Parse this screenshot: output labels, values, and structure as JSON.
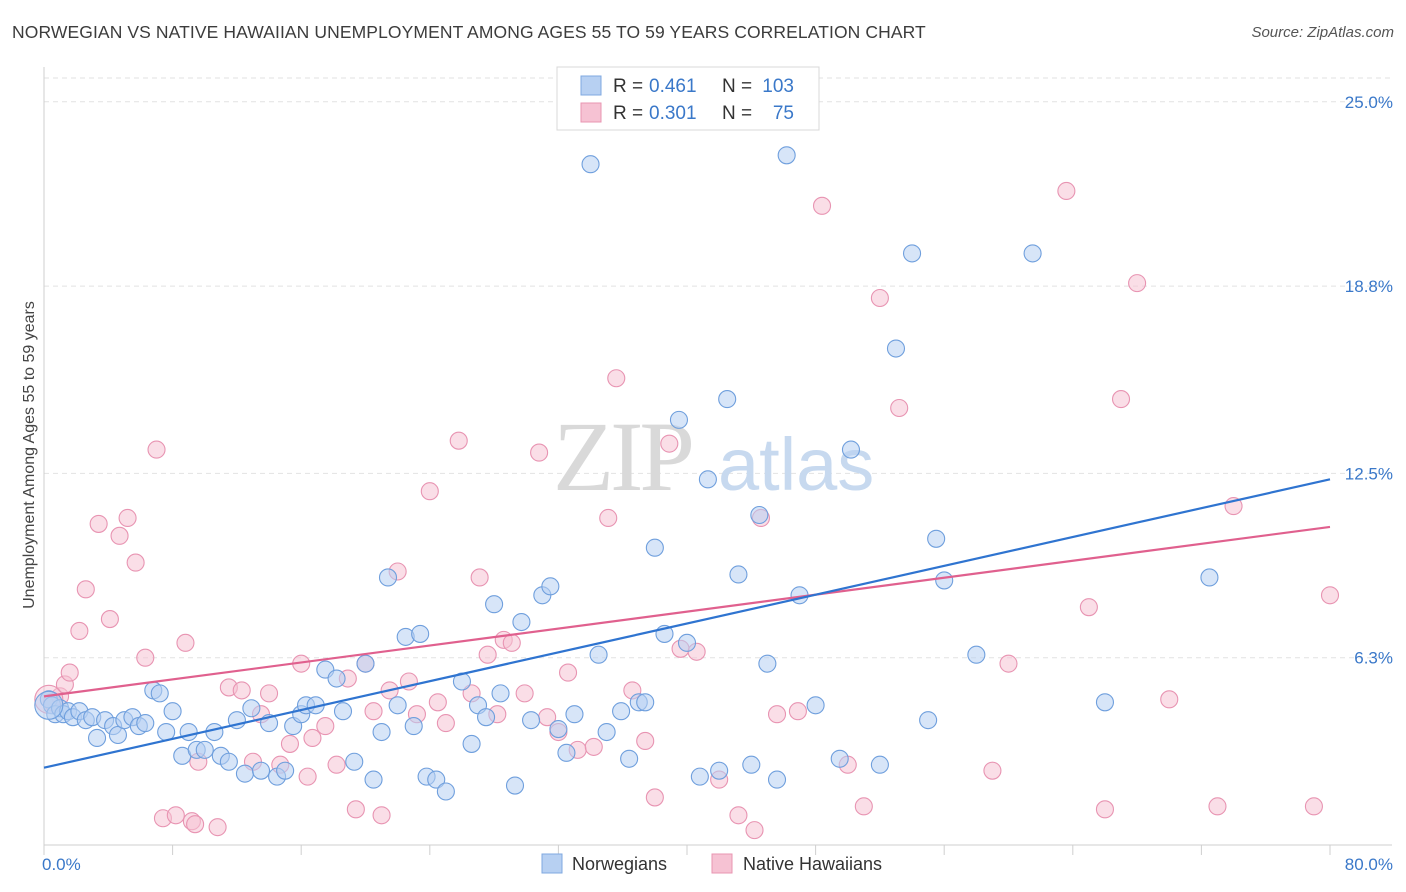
{
  "title": "NORWEGIAN VS NATIVE HAWAIIAN UNEMPLOYMENT AMONG AGES 55 TO 59 YEARS CORRELATION CHART",
  "source": "Source: ZipAtlas.com",
  "watermark": {
    "zip": "ZIP",
    "atlas": "atlas"
  },
  "colors": {
    "blue": "#2f74d0",
    "blue_fill": "#b7d0f2",
    "pink": "#e0608e",
    "pink_fill": "#f6c2d3",
    "tick_label": "#3a78c9",
    "grid": "#e2e2e2"
  },
  "chart_data": {
    "type": "scatter",
    "xlabel": "",
    "ylabel": "Unemployment Among Ages 55 to 59 years",
    "xlim": [
      0,
      80
    ],
    "ylim": [
      0,
      25.8
    ],
    "x_tick_labels": [
      "0.0%",
      "80.0%"
    ],
    "y_ticks": [
      6.3,
      12.5,
      18.8,
      25.0
    ],
    "y_tick_labels": [
      "6.3%",
      "12.5%",
      "18.8%",
      "25.0%"
    ],
    "grid": true,
    "legend_top": [
      {
        "r_label": "R =",
        "r_value": "0.461",
        "n_label": "N =",
        "n_value": "103"
      },
      {
        "r_label": "R =",
        "r_value": "0.301",
        "n_label": "N =",
        "n_value": "75"
      }
    ],
    "series": [
      {
        "name": "Norwegians",
        "trend": {
          "x": [
            0,
            80
          ],
          "y": [
            2.6,
            12.3
          ]
        },
        "points": [
          [
            0.3,
            4.9
          ],
          [
            0.5,
            4.7
          ],
          [
            0.7,
            4.4
          ],
          [
            1.0,
            4.6
          ],
          [
            1.2,
            4.4
          ],
          [
            1.5,
            4.5
          ],
          [
            1.8,
            4.3
          ],
          [
            2.2,
            4.5
          ],
          [
            2.6,
            4.2
          ],
          [
            3.0,
            4.3
          ],
          [
            3.3,
            3.6
          ],
          [
            3.8,
            4.2
          ],
          [
            4.3,
            4.0
          ],
          [
            4.6,
            3.7
          ],
          [
            5.0,
            4.2
          ],
          [
            5.5,
            4.3
          ],
          [
            5.9,
            4.0
          ],
          [
            6.3,
            4.1
          ],
          [
            6.8,
            5.2
          ],
          [
            7.2,
            5.1
          ],
          [
            7.6,
            3.8
          ],
          [
            8.0,
            4.5
          ],
          [
            8.6,
            3.0
          ],
          [
            9.0,
            3.8
          ],
          [
            9.5,
            3.2
          ],
          [
            10.0,
            3.2
          ],
          [
            10.6,
            3.8
          ],
          [
            11.0,
            3.0
          ],
          [
            11.5,
            2.8
          ],
          [
            12.0,
            4.2
          ],
          [
            12.5,
            2.4
          ],
          [
            12.9,
            4.6
          ],
          [
            13.5,
            2.5
          ],
          [
            14.0,
            4.1
          ],
          [
            14.5,
            2.3
          ],
          [
            15.0,
            2.5
          ],
          [
            15.5,
            4.0
          ],
          [
            16.0,
            4.4
          ],
          [
            16.3,
            4.7
          ],
          [
            16.9,
            4.7
          ],
          [
            17.5,
            5.9
          ],
          [
            18.2,
            5.6
          ],
          [
            18.6,
            4.5
          ],
          [
            19.3,
            2.8
          ],
          [
            20.0,
            6.1
          ],
          [
            20.5,
            2.2
          ],
          [
            21.0,
            3.8
          ],
          [
            21.4,
            9.0
          ],
          [
            22.0,
            4.7
          ],
          [
            22.5,
            7.0
          ],
          [
            23.0,
            4.0
          ],
          [
            23.4,
            7.1
          ],
          [
            23.8,
            2.3
          ],
          [
            24.4,
            2.2
          ],
          [
            25.0,
            1.8
          ],
          [
            26.0,
            5.5
          ],
          [
            26.6,
            3.4
          ],
          [
            27.0,
            4.7
          ],
          [
            27.5,
            4.3
          ],
          [
            28.0,
            8.1
          ],
          [
            28.4,
            5.1
          ],
          [
            29.3,
            2.0
          ],
          [
            29.7,
            7.5
          ],
          [
            30.3,
            4.2
          ],
          [
            31.0,
            8.4
          ],
          [
            31.5,
            8.7
          ],
          [
            32.0,
            3.9
          ],
          [
            32.5,
            3.1
          ],
          [
            33.0,
            4.4
          ],
          [
            34.0,
            22.9
          ],
          [
            34.5,
            6.4
          ],
          [
            35.0,
            3.8
          ],
          [
            35.9,
            4.5
          ],
          [
            36.4,
            2.9
          ],
          [
            37.0,
            4.8
          ],
          [
            37.4,
            4.8
          ],
          [
            38.0,
            10.0
          ],
          [
            38.6,
            7.1
          ],
          [
            39.5,
            14.3
          ],
          [
            40.0,
            6.8
          ],
          [
            40.8,
            2.3
          ],
          [
            41.3,
            12.3
          ],
          [
            42.0,
            2.5
          ],
          [
            42.5,
            15.0
          ],
          [
            43.2,
            9.1
          ],
          [
            44.0,
            2.7
          ],
          [
            44.5,
            11.1
          ],
          [
            45.0,
            6.1
          ],
          [
            45.6,
            2.2
          ],
          [
            46.2,
            23.2
          ],
          [
            47.0,
            8.4
          ],
          [
            48.0,
            4.7
          ],
          [
            49.5,
            2.9
          ],
          [
            50.2,
            13.3
          ],
          [
            52.0,
            2.7
          ],
          [
            53.0,
            16.7
          ],
          [
            54.0,
            19.9
          ],
          [
            55.0,
            4.2
          ],
          [
            55.5,
            10.3
          ],
          [
            56.0,
            8.9
          ],
          [
            58.0,
            6.4
          ],
          [
            61.5,
            19.9
          ],
          [
            66.0,
            4.8
          ],
          [
            72.5,
            9.0
          ]
        ]
      },
      {
        "name": "Native Hawaiians",
        "trend": {
          "x": [
            0,
            80
          ],
          "y": [
            5.0,
            10.7
          ]
        },
        "points": [
          [
            0.5,
            4.8
          ],
          [
            1.0,
            5.0
          ],
          [
            1.3,
            5.4
          ],
          [
            1.6,
            5.8
          ],
          [
            2.2,
            7.2
          ],
          [
            2.6,
            8.6
          ],
          [
            3.4,
            10.8
          ],
          [
            4.1,
            7.6
          ],
          [
            4.7,
            10.4
          ],
          [
            5.2,
            11.0
          ],
          [
            5.7,
            9.5
          ],
          [
            6.3,
            6.3
          ],
          [
            7.0,
            13.3
          ],
          [
            7.4,
            0.9
          ],
          [
            8.2,
            1.0
          ],
          [
            8.8,
            6.8
          ],
          [
            9.2,
            0.8
          ],
          [
            9.4,
            0.7
          ],
          [
            9.6,
            2.8
          ],
          [
            10.8,
            0.6
          ],
          [
            11.5,
            5.3
          ],
          [
            12.3,
            5.2
          ],
          [
            13.0,
            2.8
          ],
          [
            13.5,
            4.4
          ],
          [
            14.0,
            5.1
          ],
          [
            14.7,
            2.7
          ],
          [
            15.3,
            3.4
          ],
          [
            16.0,
            6.1
          ],
          [
            16.4,
            2.3
          ],
          [
            16.7,
            3.6
          ],
          [
            17.5,
            4.0
          ],
          [
            18.2,
            2.7
          ],
          [
            18.9,
            5.6
          ],
          [
            19.4,
            1.2
          ],
          [
            20.0,
            6.1
          ],
          [
            20.5,
            4.5
          ],
          [
            21.0,
            1.0
          ],
          [
            21.5,
            5.2
          ],
          [
            22.0,
            9.2
          ],
          [
            22.7,
            5.5
          ],
          [
            23.2,
            4.4
          ],
          [
            24.0,
            11.9
          ],
          [
            24.5,
            4.8
          ],
          [
            25.0,
            4.1
          ],
          [
            25.8,
            13.6
          ],
          [
            26.6,
            5.1
          ],
          [
            27.1,
            9.0
          ],
          [
            27.6,
            6.4
          ],
          [
            28.2,
            4.4
          ],
          [
            28.6,
            6.9
          ],
          [
            29.1,
            6.8
          ],
          [
            29.9,
            5.1
          ],
          [
            30.8,
            13.2
          ],
          [
            31.3,
            4.3
          ],
          [
            32.0,
            3.8
          ],
          [
            32.6,
            5.8
          ],
          [
            33.2,
            3.2
          ],
          [
            34.2,
            3.3
          ],
          [
            35.1,
            11.0
          ],
          [
            35.6,
            15.7
          ],
          [
            36.6,
            5.2
          ],
          [
            37.4,
            3.5
          ],
          [
            38.0,
            1.6
          ],
          [
            38.9,
            13.5
          ],
          [
            39.6,
            6.6
          ],
          [
            40.6,
            6.5
          ],
          [
            42.0,
            2.2
          ],
          [
            43.2,
            1.0
          ],
          [
            44.2,
            0.5
          ],
          [
            44.6,
            11.0
          ],
          [
            45.6,
            4.4
          ],
          [
            46.9,
            4.5
          ],
          [
            48.4,
            21.5
          ],
          [
            50.0,
            2.7
          ],
          [
            51.0,
            1.3
          ],
          [
            52.0,
            18.4
          ],
          [
            53.2,
            14.7
          ],
          [
            59.0,
            2.5
          ],
          [
            60.0,
            6.1
          ],
          [
            63.6,
            22.0
          ],
          [
            65.0,
            8.0
          ],
          [
            66.0,
            1.2
          ],
          [
            67.0,
            15.0
          ],
          [
            68.0,
            18.9
          ],
          [
            70.0,
            4.9
          ],
          [
            73.0,
            1.3
          ],
          [
            74.0,
            11.4
          ],
          [
            79.0,
            1.3
          ],
          [
            80.0,
            8.4
          ]
        ]
      }
    ]
  }
}
